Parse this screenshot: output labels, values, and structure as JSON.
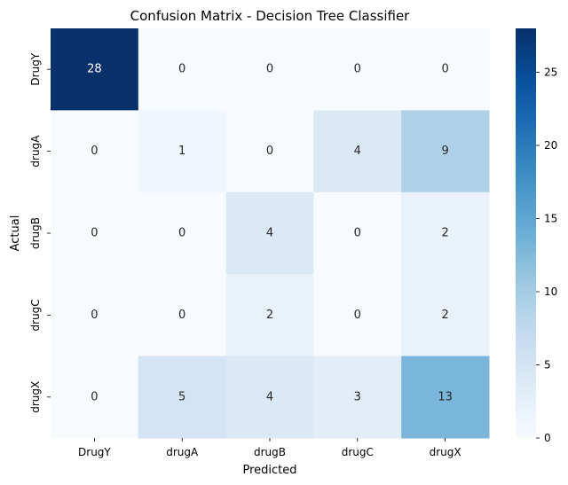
{
  "chart_data": {
    "type": "heatmap",
    "title": "Confusion Matrix - Decision Tree Classifier",
    "xlabel": "Predicted",
    "ylabel": "Actual",
    "x_categories": [
      "DrugY",
      "drugA",
      "drugB",
      "drugC",
      "drugX"
    ],
    "y_categories": [
      "DrugY",
      "drugA",
      "drugB",
      "drugC",
      "drugX"
    ],
    "matrix": [
      [
        28,
        0,
        0,
        0,
        0
      ],
      [
        0,
        1,
        0,
        4,
        9
      ],
      [
        0,
        0,
        4,
        0,
        2
      ],
      [
        0,
        0,
        2,
        0,
        2
      ],
      [
        0,
        5,
        4,
        3,
        13
      ]
    ],
    "colorbar": {
      "ticks": [
        0,
        5,
        10,
        15,
        20,
        25
      ],
      "range": [
        0,
        28
      ],
      "colormap": "Blues"
    },
    "colors": {
      "low": "#f7fbff",
      "high": "#08306b"
    }
  }
}
